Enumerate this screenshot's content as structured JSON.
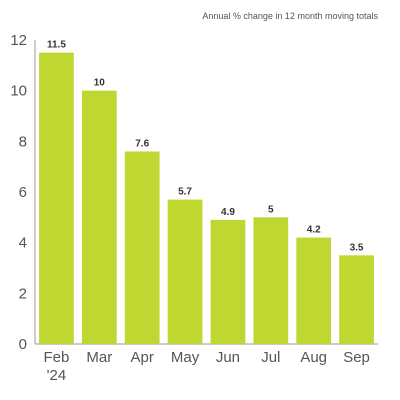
{
  "chart_data": {
    "type": "bar",
    "title": "",
    "subtitle": "Annual % change in 12 month moving totals",
    "xlabel": "",
    "ylabel": "",
    "categories": [
      "Feb",
      "Mar",
      "Apr",
      "May",
      "Jun",
      "Jul",
      "Aug",
      "Sep"
    ],
    "category_sublabels": [
      "'24",
      "",
      "",
      "",
      "",
      "",
      "",
      ""
    ],
    "values": [
      11.5,
      10,
      7.6,
      5.7,
      4.9,
      5,
      4.2,
      3.5
    ],
    "data_labels": [
      "11.5",
      "10",
      "7.6",
      "5.7",
      "4.9",
      "5",
      "4.2",
      "3.5"
    ],
    "y_ticks": [
      "0",
      "2",
      "4",
      "6",
      "8",
      "10",
      "12"
    ],
    "ylim": [
      0,
      12
    ],
    "grid": false,
    "legend": "none",
    "bar_color": "#bfd730"
  }
}
